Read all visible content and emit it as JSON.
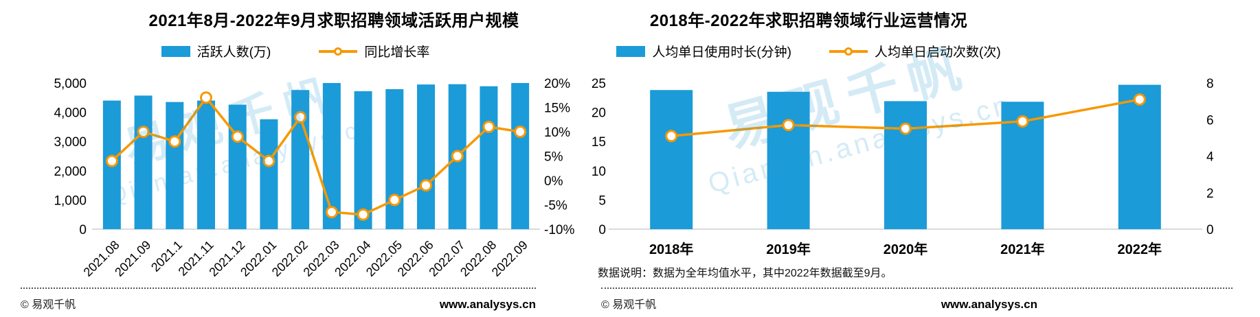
{
  "colors": {
    "bar": "#1B9BD8",
    "line": "#F79800"
  },
  "watermark": {
    "cn": "易观千帆",
    "en": "Qianfan.analysys.cn"
  },
  "footer": {
    "copyright": "© 易观千帆",
    "website": "www.analysys.cn"
  },
  "chart_data": [
    {
      "type": "bar+line",
      "title": "2021年8月-2022年9月求职招聘领域活跃用户规模",
      "categories": [
        "2021.08",
        "2021.09",
        "2021.1",
        "2021.11",
        "2021.12",
        "2022.01",
        "2022.02",
        "2022.03",
        "2022.04",
        "2022.05",
        "2022.06",
        "2022.07",
        "2022.08",
        "2022.09"
      ],
      "series": [
        {
          "name": "活跃人数(万)",
          "type": "bar",
          "axis": "left",
          "values": [
            4400,
            4570,
            4350,
            4400,
            4260,
            3760,
            4760,
            5000,
            4720,
            4790,
            4950,
            4960,
            4890,
            5000
          ]
        },
        {
          "name": "同比增长率",
          "type": "line",
          "axis": "right",
          "values": [
            4,
            10,
            8,
            17,
            9,
            4,
            13,
            -6.5,
            -7,
            -4,
            -1,
            5,
            11,
            10
          ]
        }
      ],
      "left_axis": {
        "min": 0,
        "max": 5000,
        "ticks": [
          "0",
          "1,000",
          "2,000",
          "3,000",
          "4,000",
          "5,000"
        ]
      },
      "right_axis": {
        "min": -10,
        "max": 20,
        "ticks": [
          "-10%",
          "-5%",
          "0%",
          "5%",
          "10%",
          "15%",
          "20%"
        ]
      },
      "legend_position": "top",
      "grid": false
    },
    {
      "type": "bar+line",
      "title": "2018年-2022年求职招聘领域行业运营情况",
      "categories": [
        "2018年",
        "2019年",
        "2020年",
        "2021年",
        "2022年"
      ],
      "series": [
        {
          "name": "人均单日使用时长(分钟)",
          "type": "bar",
          "axis": "left",
          "values": [
            23.8,
            23.5,
            21.9,
            21.8,
            24.7
          ]
        },
        {
          "name": "人均单日启动次数(次)",
          "type": "line",
          "axis": "right",
          "values": [
            5.1,
            5.7,
            5.5,
            5.9,
            7.1
          ]
        }
      ],
      "left_axis": {
        "min": 0,
        "max": 25,
        "ticks": [
          "0",
          "5",
          "10",
          "15",
          "20",
          "25"
        ]
      },
      "right_axis": {
        "min": 0,
        "max": 8,
        "ticks": [
          "0",
          "2",
          "4",
          "6",
          "8"
        ]
      },
      "legend_position": "top",
      "grid": false,
      "note": "数据说明：数据为全年均值水平，其中2022年数据截至9月。"
    }
  ]
}
